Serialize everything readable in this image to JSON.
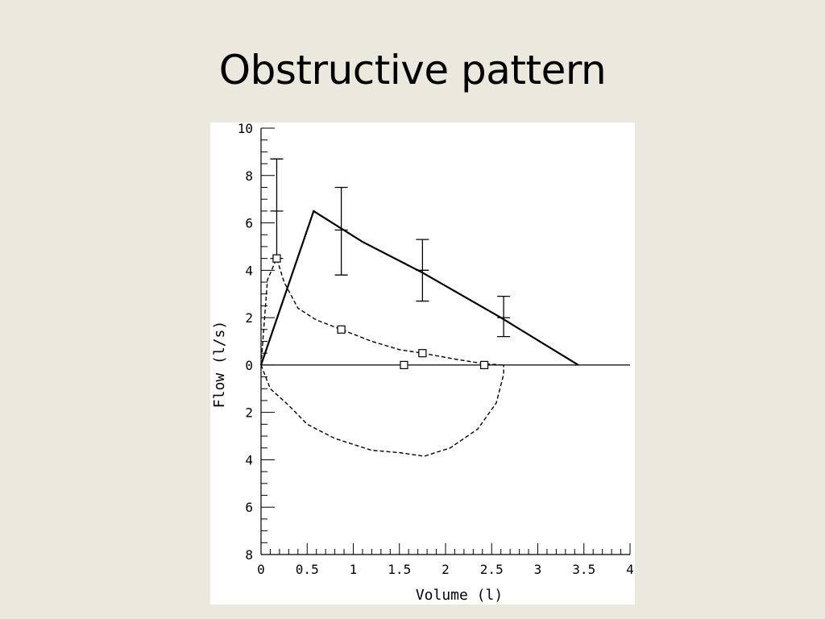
{
  "slide": {
    "title": "Obstructive pattern"
  },
  "chart_data": {
    "type": "line",
    "title": "",
    "xlabel": "Volume (l)",
    "ylabel": "Flow (l/s)",
    "xlim": [
      0,
      4
    ],
    "ylim": [
      -8,
      10
    ],
    "x_ticks": [
      {
        "value": 0,
        "label": "0"
      },
      {
        "value": 0.5,
        "label": "0.5"
      },
      {
        "value": 1,
        "label": "1"
      },
      {
        "value": 1.5,
        "label": "1.5"
      },
      {
        "value": 2,
        "label": "2"
      },
      {
        "value": 2.5,
        "label": "2.5"
      },
      {
        "value": 3,
        "label": "3"
      },
      {
        "value": 3.5,
        "label": "3.5"
      },
      {
        "value": 4,
        "label": "4"
      }
    ],
    "y_ticks": [
      {
        "value": 10,
        "label": "10"
      },
      {
        "value": 8,
        "label": "8"
      },
      {
        "value": 6,
        "label": "6"
      },
      {
        "value": 4,
        "label": "4"
      },
      {
        "value": 2,
        "label": "2"
      },
      {
        "value": 0,
        "label": "0"
      },
      {
        "value": -2,
        "label": "2"
      },
      {
        "value": -4,
        "label": "4"
      },
      {
        "value": -6,
        "label": "6"
      },
      {
        "value": -8,
        "label": "8"
      }
    ],
    "grid": false,
    "series": [
      {
        "style": "solid",
        "points": [
          [
            0,
            0
          ],
          [
            0.57,
            6.5
          ],
          [
            1.1,
            5.2
          ],
          [
            1.75,
            3.9
          ],
          [
            2.6,
            2.0
          ],
          [
            3.44,
            0
          ]
        ]
      },
      {
        "style": "dashed",
        "points": [
          [
            0,
            0
          ],
          [
            0.07,
            3.6
          ],
          [
            0.17,
            4.5
          ],
          [
            0.25,
            3.5
          ],
          [
            0.4,
            2.4
          ],
          [
            0.6,
            1.9
          ],
          [
            0.87,
            1.5
          ],
          [
            1.2,
            1.0
          ],
          [
            1.5,
            0.65
          ],
          [
            1.75,
            0.5
          ],
          [
            2.1,
            0.25
          ],
          [
            2.42,
            0.05
          ],
          [
            2.62,
            0.0
          ]
        ]
      },
      {
        "style": "dashed",
        "points": [
          [
            0,
            0
          ],
          [
            0.1,
            -1.0
          ],
          [
            0.3,
            -1.7
          ],
          [
            0.5,
            -2.5
          ],
          [
            0.8,
            -3.1
          ],
          [
            1.2,
            -3.6
          ],
          [
            1.5,
            -3.7
          ],
          [
            1.77,
            -3.85
          ],
          [
            2.05,
            -3.5
          ],
          [
            2.35,
            -2.7
          ],
          [
            2.55,
            -1.6
          ],
          [
            2.63,
            -0.4
          ],
          [
            2.63,
            0.0
          ]
        ]
      },
      {
        "style": "zero-line",
        "points": [
          [
            0,
            0
          ],
          [
            4,
            0
          ]
        ]
      }
    ],
    "error_bars": [
      {
        "x": 0.17,
        "y": 6.5,
        "low": 4.5,
        "high": 8.7
      },
      {
        "x": 0.87,
        "y": 5.7,
        "low": 3.8,
        "high": 7.5
      },
      {
        "x": 1.75,
        "y": 4.0,
        "low": 2.7,
        "high": 5.3
      },
      {
        "x": 2.63,
        "y": 2.0,
        "low": 1.2,
        "high": 2.9
      }
    ],
    "markers": [
      {
        "x": 0.17,
        "y": 4.5
      },
      {
        "x": 0.87,
        "y": 1.5
      },
      {
        "x": 1.55,
        "y": 0.0
      },
      {
        "x": 1.75,
        "y": 0.5
      },
      {
        "x": 2.42,
        "y": 0.0
      }
    ]
  }
}
